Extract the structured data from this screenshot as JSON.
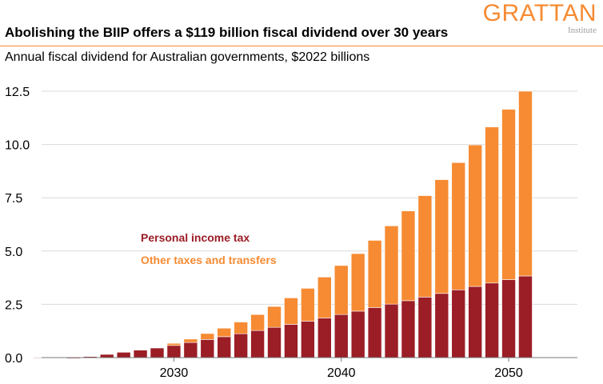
{
  "header": {
    "title": "Abolishing the BIIP offers a $119 billion fiscal dividend over 30 years",
    "subtitle": "Annual fiscal dividend for Australian governments, $2022 billions"
  },
  "brand": {
    "name": "GRATTAN",
    "sub": "Institute"
  },
  "colors": {
    "personal_income_tax": "#9B1D26",
    "other_taxes": "#F68B33",
    "gridline": "#D9D9D9",
    "axis": "#777777"
  },
  "chart_data": {
    "type": "bar",
    "stacked": true,
    "title": "",
    "xlabel": "",
    "ylabel": "",
    "ylim": [
      0,
      12.5
    ],
    "yticks": [
      "0.0",
      "2.5",
      "5.0",
      "7.5",
      "10.0",
      "12.5"
    ],
    "xticks": [
      "2030",
      "2040",
      "2050"
    ],
    "grid": "horizontal",
    "legend": {
      "position": "inside-left"
    },
    "x": [
      2022,
      2023,
      2024,
      2025,
      2026,
      2027,
      2028,
      2029,
      2030,
      2031,
      2032,
      2033,
      2034,
      2035,
      2036,
      2037,
      2038,
      2039,
      2040,
      2041,
      2042,
      2043,
      2044,
      2045,
      2046,
      2047,
      2048,
      2049,
      2050,
      2051
    ],
    "series": [
      {
        "name": "Personal income tax",
        "color": "#9B1D26",
        "values": [
          -0.01,
          -0.02,
          -0.04,
          0.05,
          0.15,
          0.25,
          0.35,
          0.45,
          0.57,
          0.71,
          0.85,
          0.98,
          1.12,
          1.27,
          1.42,
          1.56,
          1.71,
          1.86,
          2.02,
          2.18,
          2.35,
          2.51,
          2.67,
          2.84,
          3.01,
          3.18,
          3.34,
          3.5,
          3.66,
          3.83
        ]
      },
      {
        "name": "Other taxes and transfers",
        "color": "#F68B33",
        "values": [
          0.0,
          0.0,
          0.0,
          0.0,
          0.0,
          0.0,
          0.0,
          0.0,
          0.1,
          0.16,
          0.28,
          0.4,
          0.55,
          0.75,
          0.98,
          1.24,
          1.54,
          1.92,
          2.3,
          2.7,
          3.15,
          3.67,
          4.21,
          4.76,
          5.34,
          5.97,
          6.64,
          7.32,
          7.99,
          8.67
        ]
      }
    ]
  }
}
